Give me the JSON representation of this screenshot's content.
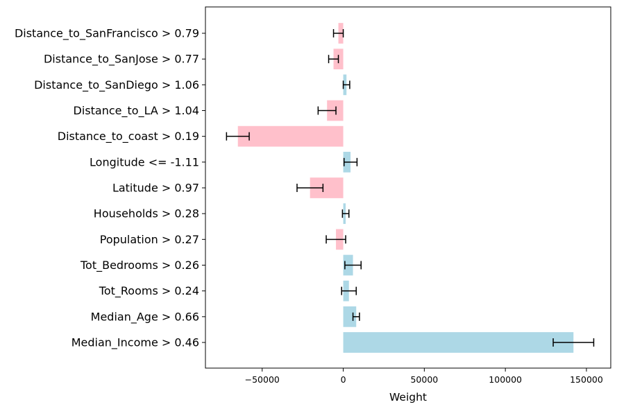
{
  "chart_data": {
    "type": "bar",
    "orientation": "horizontal",
    "xlabel": "Weight",
    "ylabel": "",
    "title": "",
    "xlim": [
      -85000,
      165000
    ],
    "xticks": [
      -50000,
      0,
      50000,
      100000,
      150000
    ],
    "xtick_labels": [
      "−50000",
      "0",
      "50000",
      "100000",
      "150000"
    ],
    "grid": false,
    "positive_color": "#add8e6",
    "negative_color": "#ffc0cb",
    "bars": [
      {
        "label": "Distance_to_SanFrancisco > 0.79",
        "value": -3000,
        "err": 3000
      },
      {
        "label": "Distance_to_SanJose > 0.77",
        "value": -6000,
        "err": 3000
      },
      {
        "label": "Distance_to_SanDiego > 1.06",
        "value": 2000,
        "err": 2000
      },
      {
        "label": "Distance_to_LA > 1.04",
        "value": -10000,
        "err": 5500
      },
      {
        "label": "Distance_to_coast > 0.19",
        "value": -65000,
        "err": 7000
      },
      {
        "label": "Longitude <= -1.11",
        "value": 4500,
        "err": 4000
      },
      {
        "label": "Latitude > 0.97",
        "value": -20500,
        "err": 8000
      },
      {
        "label": "Households > 0.28",
        "value": 1500,
        "err": 2000
      },
      {
        "label": "Population > 0.27",
        "value": -4500,
        "err": 6000
      },
      {
        "label": "Tot_Bedrooms > 0.26",
        "value": 6000,
        "err": 5000
      },
      {
        "label": "Tot_Rooms > 0.24",
        "value": 3500,
        "err": 4500
      },
      {
        "label": "Median_Age > 0.66",
        "value": 8000,
        "err": 2000
      },
      {
        "label": "Median_Income > 0.46",
        "value": 142000,
        "err": 12500
      }
    ]
  }
}
